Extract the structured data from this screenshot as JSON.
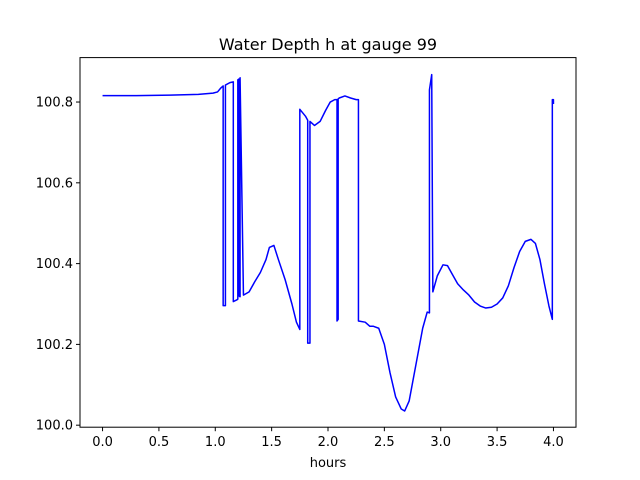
{
  "chart_data": {
    "type": "line",
    "title": "Water Depth h at gauge 99",
    "xlabel": "hours",
    "ylabel": "",
    "xlim": [
      -0.2,
      4.2
    ],
    "ylim": [
      99.995,
      100.91
    ],
    "xticks": [
      0.0,
      0.5,
      1.0,
      1.5,
      2.0,
      2.5,
      3.0,
      3.5,
      4.0
    ],
    "xtick_labels": [
      "0.0",
      "0.5",
      "1.0",
      "1.5",
      "2.0",
      "2.5",
      "3.0",
      "3.5",
      "4.0"
    ],
    "yticks": [
      100.0,
      100.2,
      100.4,
      100.6,
      100.8
    ],
    "ytick_labels": [
      "100.0",
      "100.2",
      "100.4",
      "100.6",
      "100.8"
    ],
    "grid": false,
    "legend": false,
    "series": [
      {
        "color": "#0000ff",
        "x": [
          0.0,
          0.3,
          0.6,
          0.85,
          0.98,
          1.02,
          1.05,
          1.07,
          1.07,
          1.09,
          1.09,
          1.13,
          1.16,
          1.16,
          1.19,
          1.2,
          1.2,
          1.21,
          1.21,
          1.22,
          1.22,
          1.25,
          1.3,
          1.35,
          1.4,
          1.45,
          1.48,
          1.52,
          1.56,
          1.62,
          1.68,
          1.72,
          1.75,
          1.75,
          1.8,
          1.82,
          1.82,
          1.84,
          1.84,
          1.88,
          1.93,
          1.98,
          2.02,
          2.06,
          2.08,
          2.08,
          2.09,
          2.09,
          2.1,
          2.15,
          2.2,
          2.25,
          2.27,
          2.27,
          2.33,
          2.37,
          2.4,
          2.45,
          2.5,
          2.55,
          2.6,
          2.65,
          2.68,
          2.72,
          2.78,
          2.84,
          2.88,
          2.9,
          2.9,
          2.92,
          2.93,
          2.97,
          3.02,
          3.06,
          3.1,
          3.15,
          3.2,
          3.25,
          3.3,
          3.35,
          3.4,
          3.45,
          3.5,
          3.55,
          3.6,
          3.65,
          3.7,
          3.75,
          3.8,
          3.84,
          3.88,
          3.92,
          3.96,
          3.99,
          3.99,
          4.0,
          4.0
        ],
        "y": [
          100.816,
          100.816,
          100.817,
          100.819,
          100.822,
          100.825,
          100.835,
          100.84,
          100.296,
          100.296,
          100.842,
          100.848,
          100.85,
          100.306,
          100.31,
          100.312,
          100.855,
          100.857,
          100.32,
          100.318,
          100.86,
          100.322,
          100.33,
          100.355,
          100.378,
          100.41,
          100.44,
          100.445,
          100.41,
          100.36,
          100.3,
          100.255,
          100.237,
          100.782,
          100.765,
          100.755,
          100.203,
          100.203,
          100.752,
          100.742,
          100.752,
          100.78,
          100.8,
          100.806,
          100.806,
          100.258,
          100.262,
          100.808,
          100.81,
          100.815,
          100.81,
          100.806,
          100.806,
          100.258,
          100.255,
          100.245,
          100.245,
          100.24,
          100.2,
          100.13,
          100.07,
          100.04,
          100.035,
          100.06,
          100.15,
          100.24,
          100.28,
          100.278,
          100.83,
          100.868,
          100.33,
          100.37,
          100.397,
          100.395,
          100.375,
          100.35,
          100.335,
          100.322,
          100.305,
          100.295,
          100.29,
          100.292,
          100.3,
          100.315,
          100.345,
          100.39,
          100.43,
          100.455,
          100.46,
          100.45,
          100.41,
          100.35,
          100.295,
          100.262,
          100.806,
          100.806,
          100.795
        ]
      }
    ]
  }
}
